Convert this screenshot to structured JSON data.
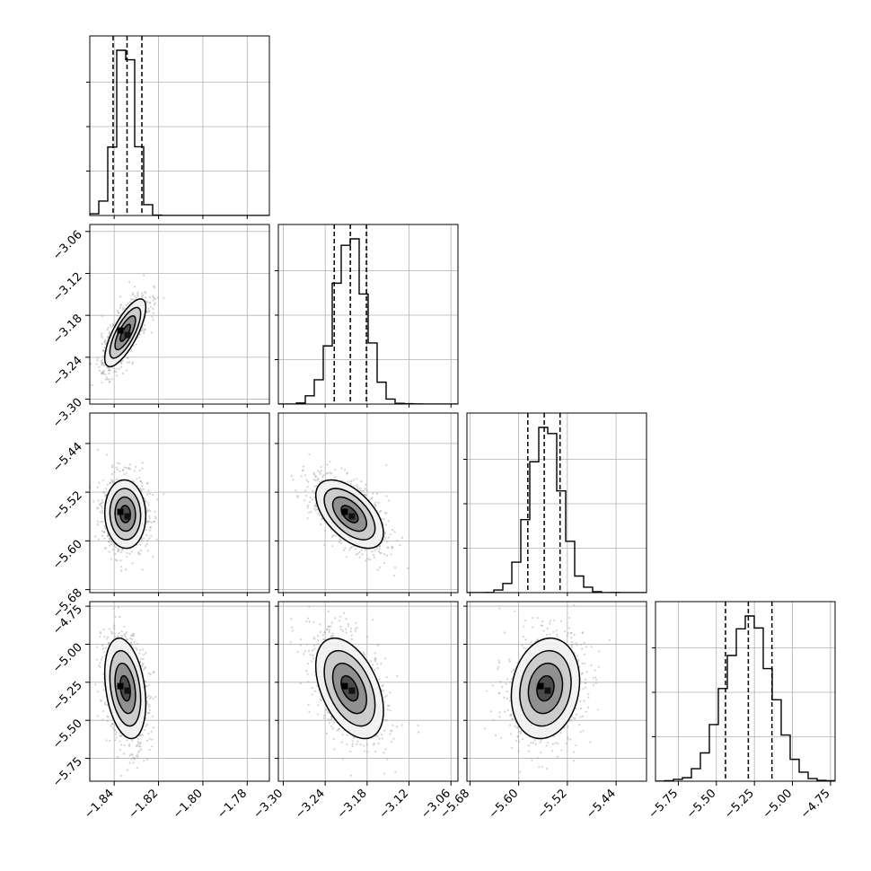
{
  "chart_data": {
    "type": "corner",
    "parameters": 4,
    "grid": true,
    "colors": {
      "line": "#000000",
      "grid": "#b0b0b0",
      "points": "#9e9e9e",
      "density_dark": "#000000",
      "density_light": "#d9d9d9"
    },
    "axes": [
      {
        "range": [
          -1.851,
          -1.77
        ],
        "ticks": [
          "−1.84",
          "−1.82",
          "−1.80",
          "−1.78"
        ],
        "tick_values": [
          -1.84,
          -1.82,
          -1.8,
          -1.78
        ],
        "quantiles": [
          -1.8405,
          -1.8342,
          -1.8275
        ],
        "mode": -1.835,
        "sigma": 0.0042
      },
      {
        "range": [
          -3.307,
          -3.05
        ],
        "ticks": [
          "−3.30",
          "−3.24",
          "−3.18",
          "−3.12",
          "−3.06"
        ],
        "tick_values": [
          -3.3,
          -3.24,
          -3.18,
          -3.12,
          -3.06
        ],
        "quantiles": [
          -3.227,
          -3.204,
          -3.181
        ],
        "mode": -3.205,
        "sigma": 0.022
      },
      {
        "range": [
          -5.685,
          -5.39
        ],
        "ticks": [
          "−5.68",
          "−5.60",
          "−5.52",
          "−5.44"
        ],
        "tick_values": [
          -5.68,
          -5.6,
          -5.52,
          -5.44
        ],
        "quantiles": [
          -5.585,
          -5.558,
          -5.532
        ],
        "mode": -5.556,
        "sigma": 0.0255
      },
      {
        "range": [
          -5.9,
          -4.72
        ],
        "ticks": [
          "−5.75",
          "−5.50",
          "−5.25",
          "−5.00",
          "−4.75"
        ],
        "tick_values": [
          -5.75,
          -5.5,
          -5.25,
          -5.0,
          -4.75
        ],
        "quantiles": [
          -5.44,
          -5.29,
          -5.135
        ],
        "mode": -5.29,
        "sigma": 0.15
      }
    ],
    "y_ticks": [
      null,
      [
        "−3.06",
        "−3.12",
        "−3.18",
        "−3.24",
        "−3.30"
      ],
      [
        "−5.44",
        "−5.52",
        "−5.60",
        "−5.68"
      ],
      [
        "−4.75",
        "−5.00",
        "−5.25",
        "−5.50",
        "−5.75"
      ]
    ],
    "correlations": {
      "1-0": 0.75,
      "2-0": -0.05,
      "2-1": -0.55,
      "3-0": -0.3,
      "3-1": -0.45,
      "3-2": 0.15
    },
    "histogram_bins": 20,
    "contour_levels_sigma": [
      0.5,
      1.0,
      1.5,
      2.0
    ]
  }
}
